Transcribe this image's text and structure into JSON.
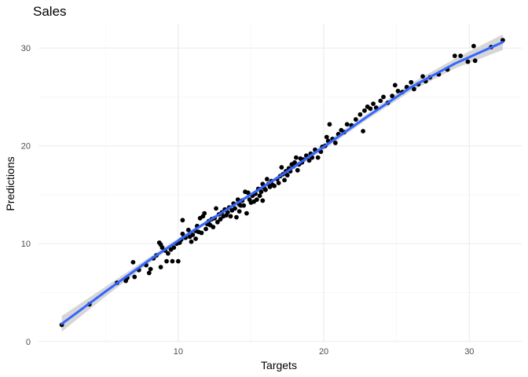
{
  "chart_data": {
    "type": "scatter",
    "title": "Sales",
    "xlabel": "Targets",
    "ylabel": "Predictions",
    "xlim": [
      0.4,
      33.6
    ],
    "ylim": [
      -0.1,
      32.5
    ],
    "x_ticks": [
      10,
      20,
      30
    ],
    "y_ticks": [
      0,
      10,
      20,
      30
    ],
    "x_minor_ticks": [
      5,
      15,
      25
    ],
    "y_minor_ticks": [
      5,
      15,
      25
    ],
    "grid": true,
    "legend": "none",
    "point_color": "#000000",
    "fit_color": "#3366ff",
    "band_color": "#c8c8c8",
    "series": [
      {
        "points": [
          [
            2.0,
            1.7
          ],
          [
            3.9,
            3.8
          ],
          [
            5.8,
            6.0
          ],
          [
            6.4,
            6.2
          ],
          [
            6.5,
            6.5
          ],
          [
            6.9,
            8.1
          ],
          [
            7.0,
            6.6
          ],
          [
            7.3,
            7.3
          ],
          [
            7.8,
            7.8
          ],
          [
            8.0,
            7.0
          ],
          [
            8.1,
            7.4
          ],
          [
            8.3,
            8.5
          ],
          [
            8.5,
            8.8
          ],
          [
            8.7,
            10.1
          ],
          [
            8.8,
            9.9
          ],
          [
            8.8,
            7.6
          ],
          [
            8.9,
            9.6
          ],
          [
            9.1,
            9.3
          ],
          [
            9.2,
            8.2
          ],
          [
            9.3,
            9.0
          ],
          [
            9.5,
            9.4
          ],
          [
            9.6,
            8.2
          ],
          [
            9.7,
            9.6
          ],
          [
            9.9,
            10.0
          ],
          [
            10.0,
            8.2
          ],
          [
            10.1,
            10.1
          ],
          [
            10.2,
            10.4
          ],
          [
            10.3,
            12.4
          ],
          [
            10.3,
            11.0
          ],
          [
            10.4,
            10.7
          ],
          [
            10.5,
            10.6
          ],
          [
            10.7,
            11.4
          ],
          [
            10.8,
            10.7
          ],
          [
            10.9,
            10.2
          ],
          [
            11.0,
            10.9
          ],
          [
            11.2,
            11.3
          ],
          [
            11.2,
            10.5
          ],
          [
            11.3,
            11.8
          ],
          [
            11.4,
            11.2
          ],
          [
            11.5,
            12.6
          ],
          [
            11.6,
            11.1
          ],
          [
            11.7,
            12.8
          ],
          [
            11.8,
            13.1
          ],
          [
            11.9,
            11.5
          ],
          [
            12.0,
            12.0
          ],
          [
            12.1,
            12.3
          ],
          [
            12.2,
            11.9
          ],
          [
            12.3,
            12.5
          ],
          [
            12.4,
            11.7
          ],
          [
            12.5,
            12.6
          ],
          [
            12.6,
            13.6
          ],
          [
            12.7,
            12.2
          ],
          [
            12.8,
            13.0
          ],
          [
            12.9,
            12.5
          ],
          [
            13.0,
            13.2
          ],
          [
            13.1,
            12.8
          ],
          [
            13.2,
            13.5
          ],
          [
            13.3,
            12.9
          ],
          [
            13.4,
            13.2
          ],
          [
            13.5,
            13.7
          ],
          [
            13.6,
            12.8
          ],
          [
            13.7,
            13.4
          ],
          [
            13.8,
            14.1
          ],
          [
            13.9,
            13.6
          ],
          [
            14.0,
            12.7
          ],
          [
            14.1,
            14.5
          ],
          [
            14.2,
            13.3
          ],
          [
            14.2,
            14.0
          ],
          [
            14.3,
            13.9
          ],
          [
            14.4,
            14.4
          ],
          [
            14.5,
            13.9
          ],
          [
            14.6,
            15.3
          ],
          [
            14.7,
            13.1
          ],
          [
            14.8,
            15.2
          ],
          [
            14.9,
            14.5
          ],
          [
            15.0,
            14.2
          ],
          [
            15.1,
            14.9
          ],
          [
            15.2,
            14.3
          ],
          [
            15.3,
            15.1
          ],
          [
            15.4,
            14.5
          ],
          [
            15.5,
            15.6
          ],
          [
            15.6,
            14.9
          ],
          [
            15.7,
            15.3
          ],
          [
            15.8,
            14.4
          ],
          [
            15.8,
            16.1
          ],
          [
            15.9,
            15.7
          ],
          [
            16.0,
            15.5
          ],
          [
            16.1,
            16.6
          ],
          [
            16.2,
            16.1
          ],
          [
            16.3,
            15.8
          ],
          [
            16.4,
            16.4
          ],
          [
            16.5,
            16.0
          ],
          [
            16.6,
            15.9
          ],
          [
            16.8,
            16.6
          ],
          [
            16.9,
            16.2
          ],
          [
            17.0,
            16.9
          ],
          [
            17.1,
            17.8
          ],
          [
            17.2,
            17.1
          ],
          [
            17.3,
            16.5
          ],
          [
            17.4,
            17.4
          ],
          [
            17.5,
            17.0
          ],
          [
            17.6,
            17.7
          ],
          [
            17.7,
            17.4
          ],
          [
            17.8,
            18.1
          ],
          [
            17.9,
            17.9
          ],
          [
            18.0,
            18.3
          ],
          [
            18.1,
            18.8
          ],
          [
            18.2,
            17.5
          ],
          [
            18.3,
            18.1
          ],
          [
            18.4,
            18.7
          ],
          [
            18.5,
            18.3
          ],
          [
            18.6,
            18.6
          ],
          [
            18.8,
            19.0
          ],
          [
            19.0,
            18.5
          ],
          [
            19.1,
            19.2
          ],
          [
            19.2,
            18.8
          ],
          [
            19.4,
            19.6
          ],
          [
            19.6,
            18.8
          ],
          [
            19.8,
            19.4
          ],
          [
            19.9,
            19.9
          ],
          [
            20.1,
            20.0
          ],
          [
            20.2,
            20.9
          ],
          [
            20.3,
            20.5
          ],
          [
            20.4,
            22.2
          ],
          [
            20.6,
            20.7
          ],
          [
            20.8,
            20.3
          ],
          [
            21.0,
            21.2
          ],
          [
            21.2,
            21.6
          ],
          [
            21.4,
            21.4
          ],
          [
            21.6,
            22.2
          ],
          [
            21.9,
            22.1
          ],
          [
            22.2,
            22.7
          ],
          [
            22.5,
            23.2
          ],
          [
            22.7,
            21.5
          ],
          [
            22.8,
            23.6
          ],
          [
            23.0,
            24.0
          ],
          [
            23.2,
            23.8
          ],
          [
            23.4,
            24.3
          ],
          [
            23.6,
            23.9
          ],
          [
            23.9,
            24.6
          ],
          [
            24.1,
            25.0
          ],
          [
            24.4,
            24.4
          ],
          [
            24.7,
            25.1
          ],
          [
            24.9,
            26.2
          ],
          [
            25.1,
            25.6
          ],
          [
            25.4,
            25.5
          ],
          [
            25.7,
            26.0
          ],
          [
            26.0,
            26.5
          ],
          [
            26.2,
            25.8
          ],
          [
            26.5,
            26.3
          ],
          [
            26.8,
            27.1
          ],
          [
            27.0,
            26.6
          ],
          [
            27.3,
            27.0
          ],
          [
            27.9,
            27.3
          ],
          [
            28.5,
            27.8
          ],
          [
            29.0,
            29.2
          ],
          [
            29.4,
            29.2
          ],
          [
            29.9,
            28.6
          ],
          [
            30.3,
            30.2
          ],
          [
            30.4,
            28.7
          ],
          [
            31.5,
            30.1
          ],
          [
            32.3,
            30.8
          ]
        ]
      }
    ],
    "fit": {
      "x": [
        2.0,
        5.0,
        8.0,
        11.0,
        14.0,
        17.0,
        20.0,
        23.0,
        26.0,
        29.0,
        32.3
      ],
      "y": [
        1.8,
        5.1,
        8.3,
        11.3,
        14.1,
        16.9,
        19.9,
        23.0,
        26.0,
        28.4,
        30.6
      ],
      "lower": [
        1.0,
        4.6,
        8.0,
        11.1,
        13.9,
        16.7,
        19.6,
        22.7,
        25.6,
        27.9,
        29.8
      ],
      "upper": [
        2.6,
        5.6,
        8.6,
        11.5,
        14.3,
        17.1,
        20.2,
        23.3,
        26.4,
        28.9,
        31.4
      ]
    }
  }
}
